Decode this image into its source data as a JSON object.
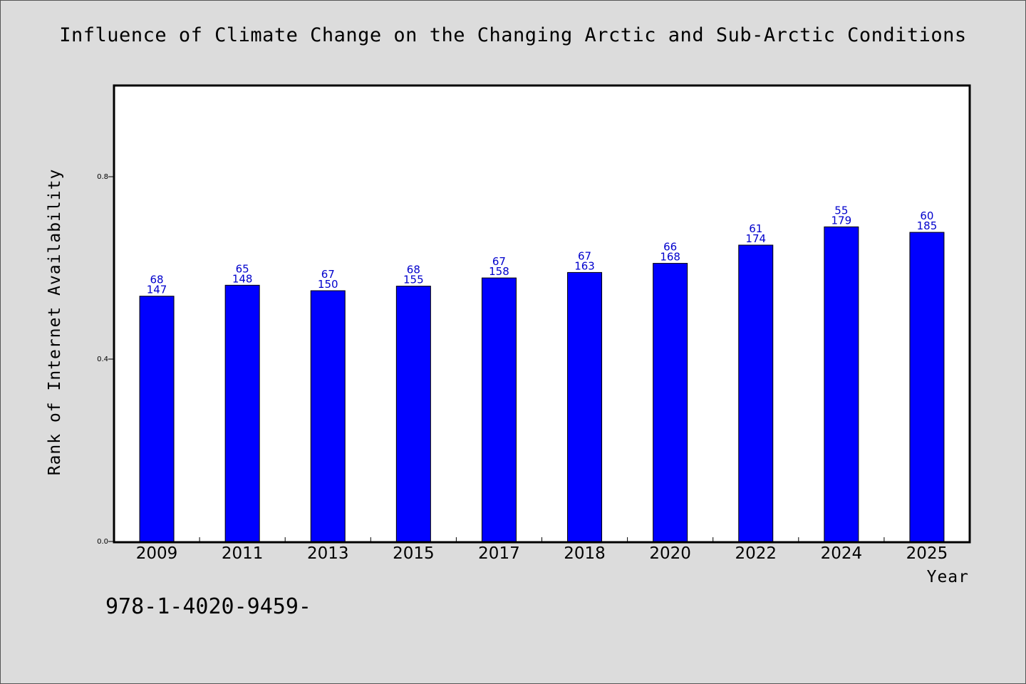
{
  "page": {
    "code_label": "978-1-4020-9459-"
  },
  "chart_data": {
    "type": "bar",
    "title": "Influence of Climate Change on the Changing Arctic and Sub-Arctic Conditions",
    "xlabel": "Year",
    "ylabel": "Rank of Internet Availability",
    "ylim": [
      0,
      1.0
    ],
    "yticks": [
      0.0,
      0.4,
      0.8
    ],
    "ytick_labels": [
      "0.0",
      "0.4",
      "0.8"
    ],
    "grid": false,
    "categories": [
      "2009",
      "2011",
      "2013",
      "2015",
      "2017",
      "2018",
      "2020",
      "2022",
      "2024",
      "2025"
    ],
    "values": [
      0.538,
      0.562,
      0.55,
      0.56,
      0.578,
      0.59,
      0.61,
      0.65,
      0.69,
      0.678
    ],
    "labels_top": [
      "68",
      "65",
      "67",
      "68",
      "67",
      "67",
      "66",
      "61",
      "55",
      "60"
    ],
    "labels_bottom": [
      "147",
      "148",
      "150",
      "155",
      "158",
      "163",
      "168",
      "174",
      "179",
      "185"
    ],
    "bar_color": "#0000ff",
    "label_color": "#0000cc"
  }
}
